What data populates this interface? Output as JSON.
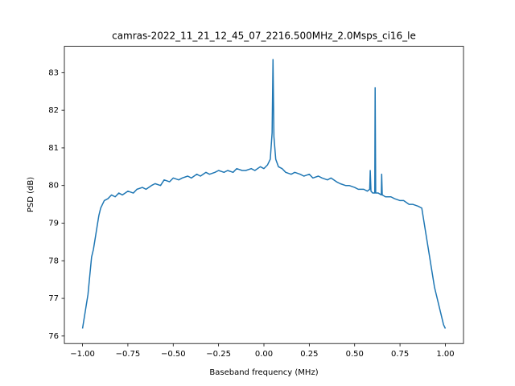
{
  "chart_data": {
    "type": "line",
    "title": "camras-2022_11_21_12_45_07_2216.500MHz_2.0Msps_ci16_le",
    "x_label": "Baseband frequency (MHz)",
    "y_label": "PSD (dB)",
    "x": [
      -1.0,
      -0.99,
      -0.98,
      -0.97,
      -0.96,
      -0.95,
      -0.94,
      -0.93,
      -0.92,
      -0.91,
      -0.9,
      -0.89,
      -0.88,
      -0.86,
      -0.84,
      -0.82,
      -0.8,
      -0.78,
      -0.75,
      -0.72,
      -0.7,
      -0.67,
      -0.65,
      -0.62,
      -0.6,
      -0.57,
      -0.55,
      -0.52,
      -0.5,
      -0.47,
      -0.45,
      -0.42,
      -0.4,
      -0.37,
      -0.35,
      -0.32,
      -0.3,
      -0.27,
      -0.25,
      -0.22,
      -0.2,
      -0.17,
      -0.15,
      -0.12,
      -0.1,
      -0.07,
      -0.05,
      -0.02,
      0.0,
      0.02,
      0.035,
      0.045,
      0.05,
      0.055,
      0.065,
      0.08,
      0.1,
      0.12,
      0.15,
      0.17,
      0.2,
      0.22,
      0.25,
      0.27,
      0.3,
      0.32,
      0.35,
      0.37,
      0.4,
      0.42,
      0.45,
      0.47,
      0.5,
      0.52,
      0.55,
      0.57,
      0.583,
      0.586,
      0.59,
      0.6,
      0.611,
      0.613,
      0.616,
      0.63,
      0.647,
      0.649,
      0.652,
      0.67,
      0.7,
      0.72,
      0.75,
      0.77,
      0.8,
      0.82,
      0.85,
      0.87,
      0.88,
      0.89,
      0.9,
      0.91,
      0.92,
      0.93,
      0.94,
      0.95,
      0.96,
      0.97,
      0.98,
      0.99,
      1.0
    ],
    "series": [
      {
        "color": "#1f77b4",
        "values": [
          76.2,
          76.5,
          76.8,
          77.1,
          77.6,
          78.1,
          78.3,
          78.6,
          78.9,
          79.2,
          79.4,
          79.5,
          79.6,
          79.65,
          79.75,
          79.7,
          79.8,
          79.75,
          79.85,
          79.8,
          79.9,
          79.95,
          79.9,
          80.0,
          80.05,
          80.0,
          80.15,
          80.1,
          80.2,
          80.15,
          80.2,
          80.25,
          80.2,
          80.3,
          80.25,
          80.35,
          80.3,
          80.35,
          80.4,
          80.35,
          80.4,
          80.35,
          80.45,
          80.4,
          80.4,
          80.45,
          80.4,
          80.5,
          80.45,
          80.55,
          80.7,
          81.4,
          83.35,
          81.3,
          80.7,
          80.5,
          80.45,
          80.35,
          80.3,
          80.35,
          80.3,
          80.25,
          80.3,
          80.2,
          80.25,
          80.2,
          80.15,
          80.2,
          80.1,
          80.05,
          80.0,
          80.0,
          79.95,
          79.9,
          79.9,
          79.85,
          79.9,
          80.4,
          79.85,
          79.8,
          79.8,
          82.6,
          79.8,
          79.8,
          79.75,
          80.3,
          79.75,
          79.7,
          79.7,
          79.65,
          79.6,
          79.6,
          79.5,
          79.5,
          79.45,
          79.4,
          79.1,
          78.8,
          78.5,
          78.2,
          77.9,
          77.6,
          77.3,
          77.1,
          76.9,
          76.7,
          76.5,
          76.3,
          76.2
        ]
      }
    ],
    "xlim": [
      -1.1,
      1.1
    ],
    "ylim": [
      75.8,
      83.7
    ],
    "xticks": [
      {
        "value": -1.0,
        "label": "−1.00"
      },
      {
        "value": -0.75,
        "label": "−0.75"
      },
      {
        "value": -0.5,
        "label": "−0.50"
      },
      {
        "value": -0.25,
        "label": "−0.25"
      },
      {
        "value": 0.0,
        "label": "0.00"
      },
      {
        "value": 0.25,
        "label": "0.25"
      },
      {
        "value": 0.5,
        "label": "0.50"
      },
      {
        "value": 0.75,
        "label": "0.75"
      },
      {
        "value": 1.0,
        "label": "1.00"
      }
    ],
    "yticks": [
      76,
      77,
      78,
      79,
      80,
      81,
      82,
      83
    ]
  }
}
